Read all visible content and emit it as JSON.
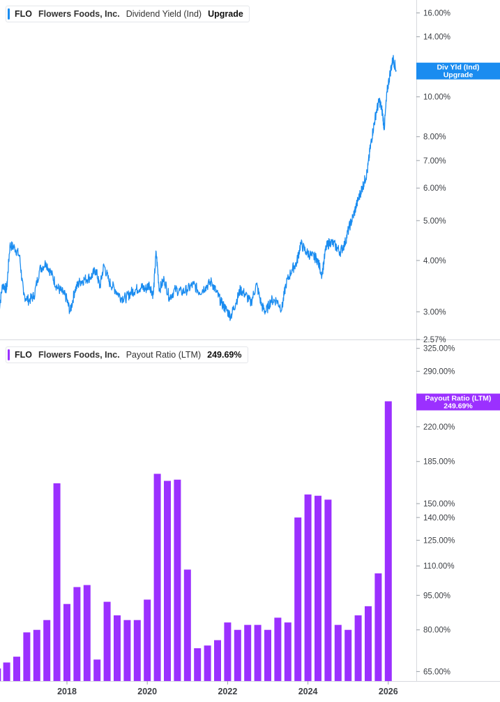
{
  "top_legend": {
    "ticker": "FLO",
    "company": "Flowers Foods, Inc.",
    "metric": "Dividend Yield (Ind)",
    "value": "Upgrade",
    "color": "#1a8cf0"
  },
  "bottom_legend": {
    "ticker": "FLO",
    "company": "Flowers Foods, Inc.",
    "metric": "Payout Ratio (LTM)",
    "value": "249.69%",
    "color": "#9b30ff"
  },
  "x_axis": {
    "ticks": [
      {
        "label": "2018",
        "year": 2018.0
      },
      {
        "label": "2020",
        "year": 2020.0
      },
      {
        "label": "2022",
        "year": 2022.0
      },
      {
        "label": "2024",
        "year": 2024.0
      },
      {
        "label": "2026",
        "year": 2026.0
      }
    ]
  },
  "chart_data": [
    {
      "type": "line",
      "name": "Dividend Yield (Ind)",
      "scale": "log",
      "color": "#1a8cf0",
      "ylim": [
        2.57,
        17.2
      ],
      "y_ticks": [
        {
          "label": "16.00%",
          "value": 16
        },
        {
          "label": "14.00%",
          "value": 14
        },
        {
          "label": "10.00%",
          "value": 10
        },
        {
          "label": "8.00%",
          "value": 8
        },
        {
          "label": "7.00%",
          "value": 7
        },
        {
          "label": "6.00%",
          "value": 6
        },
        {
          "label": "5.00%",
          "value": 5
        },
        {
          "label": "4.00%",
          "value": 4
        },
        {
          "label": "3.00%",
          "value": 3
        },
        {
          "label": "2.57%",
          "value": 2.57
        }
      ],
      "last_value_label": [
        "Div Yld (Ind)",
        "Upgrade"
      ],
      "points": [
        [
          2016.3,
          3.0
        ],
        [
          2016.4,
          3.5
        ],
        [
          2016.5,
          3.4
        ],
        [
          2016.58,
          4.35
        ],
        [
          2016.7,
          4.3
        ],
        [
          2016.82,
          4.1
        ],
        [
          2016.92,
          3.3
        ],
        [
          2017.05,
          3.2
        ],
        [
          2017.18,
          3.28
        ],
        [
          2017.32,
          3.8
        ],
        [
          2017.48,
          3.95
        ],
        [
          2017.62,
          3.7
        ],
        [
          2017.75,
          3.45
        ],
        [
          2017.88,
          3.35
        ],
        [
          2017.98,
          3.25
        ],
        [
          2018.08,
          3.0
        ],
        [
          2018.2,
          3.4
        ],
        [
          2018.32,
          3.55
        ],
        [
          2018.45,
          3.6
        ],
        [
          2018.6,
          3.65
        ],
        [
          2018.72,
          3.8
        ],
        [
          2018.82,
          3.45
        ],
        [
          2018.92,
          3.9
        ],
        [
          2019.05,
          3.55
        ],
        [
          2019.2,
          3.4
        ],
        [
          2019.35,
          3.25
        ],
        [
          2019.48,
          3.25
        ],
        [
          2019.6,
          3.35
        ],
        [
          2019.72,
          3.4
        ],
        [
          2019.85,
          3.45
        ],
        [
          2019.95,
          3.4
        ],
        [
          2020.05,
          3.5
        ],
        [
          2020.15,
          3.3
        ],
        [
          2020.22,
          4.2
        ],
        [
          2020.3,
          3.4
        ],
        [
          2020.42,
          3.6
        ],
        [
          2020.55,
          3.25
        ],
        [
          2020.7,
          3.4
        ],
        [
          2020.85,
          3.35
        ],
        [
          2021.0,
          3.4
        ],
        [
          2021.15,
          3.5
        ],
        [
          2021.3,
          3.35
        ],
        [
          2021.45,
          3.45
        ],
        [
          2021.6,
          3.55
        ],
        [
          2021.72,
          3.35
        ],
        [
          2021.85,
          3.15
        ],
        [
          2021.95,
          3.05
        ],
        [
          2022.08,
          2.93
        ],
        [
          2022.2,
          3.15
        ],
        [
          2022.32,
          3.4
        ],
        [
          2022.45,
          3.3
        ],
        [
          2022.58,
          3.15
        ],
        [
          2022.72,
          3.5
        ],
        [
          2022.85,
          3.1
        ],
        [
          2022.95,
          3.0
        ],
        [
          2023.08,
          3.2
        ],
        [
          2023.22,
          3.2
        ],
        [
          2023.35,
          3.05
        ],
        [
          2023.45,
          3.5
        ],
        [
          2023.6,
          3.8
        ],
        [
          2023.72,
          3.95
        ],
        [
          2023.82,
          4.4
        ],
        [
          2023.95,
          4.2
        ],
        [
          2024.1,
          4.1
        ],
        [
          2024.22,
          4.05
        ],
        [
          2024.35,
          3.7
        ],
        [
          2024.45,
          4.3
        ],
        [
          2024.55,
          4.45
        ],
        [
          2024.68,
          4.35
        ],
        [
          2024.8,
          4.2
        ],
        [
          2024.92,
          4.4
        ],
        [
          2025.02,
          4.8
        ],
        [
          2025.12,
          5.1
        ],
        [
          2025.22,
          5.5
        ],
        [
          2025.32,
          5.9
        ],
        [
          2025.4,
          6.2
        ],
        [
          2025.48,
          6.6
        ],
        [
          2025.55,
          7.5
        ],
        [
          2025.62,
          8.3
        ],
        [
          2025.7,
          9.2
        ],
        [
          2025.78,
          9.8
        ],
        [
          2025.85,
          9.2
        ],
        [
          2025.9,
          8.4
        ],
        [
          2025.97,
          10.3
        ],
        [
          2026.05,
          11.5
        ],
        [
          2026.12,
          12.4
        ],
        [
          2026.2,
          11.6
        ]
      ]
    },
    {
      "type": "bar",
      "name": "Payout Ratio (LTM)",
      "scale": "log",
      "color": "#9b30ff",
      "ylim": [
        62,
        335
      ],
      "y_ticks": [
        {
          "label": "325.00%",
          "value": 325
        },
        {
          "label": "290.00%",
          "value": 290
        },
        {
          "label": "220.00%",
          "value": 220
        },
        {
          "label": "185.00%",
          "value": 185
        },
        {
          "label": "150.00%",
          "value": 150
        },
        {
          "label": "140.00%",
          "value": 140
        },
        {
          "label": "125.00%",
          "value": 125
        },
        {
          "label": "110.00%",
          "value": 110
        },
        {
          "label": "95.00%",
          "value": 95
        },
        {
          "label": "80.00%",
          "value": 80
        },
        {
          "label": "65.00%",
          "value": 65
        }
      ],
      "last_value_label": [
        "Payout Ratio (LTM)",
        "249.69%"
      ],
      "x": [
        2016.27,
        2016.5,
        2016.75,
        2017.0,
        2017.25,
        2017.5,
        2017.75,
        2018.0,
        2018.25,
        2018.5,
        2018.75,
        2019.0,
        2019.25,
        2019.5,
        2019.75,
        2020.0,
        2020.25,
        2020.5,
        2020.75,
        2021.0,
        2021.25,
        2021.5,
        2021.75,
        2022.0,
        2022.25,
        2022.5,
        2022.75,
        2023.0,
        2023.25,
        2023.5,
        2023.75,
        2024.0,
        2024.25,
        2024.5,
        2024.75,
        2025.0,
        2025.25,
        2025.5,
        2025.75,
        2026.0
      ],
      "values": [
        66,
        68,
        70,
        79,
        80,
        84,
        166,
        91,
        99,
        100,
        69,
        92,
        86,
        84,
        84,
        93,
        174,
        168,
        169,
        108,
        73,
        74,
        76,
        83,
        80,
        82,
        82,
        80,
        85,
        83,
        140,
        157,
        156,
        153,
        82,
        80,
        86,
        90,
        106,
        249.69
      ]
    }
  ]
}
